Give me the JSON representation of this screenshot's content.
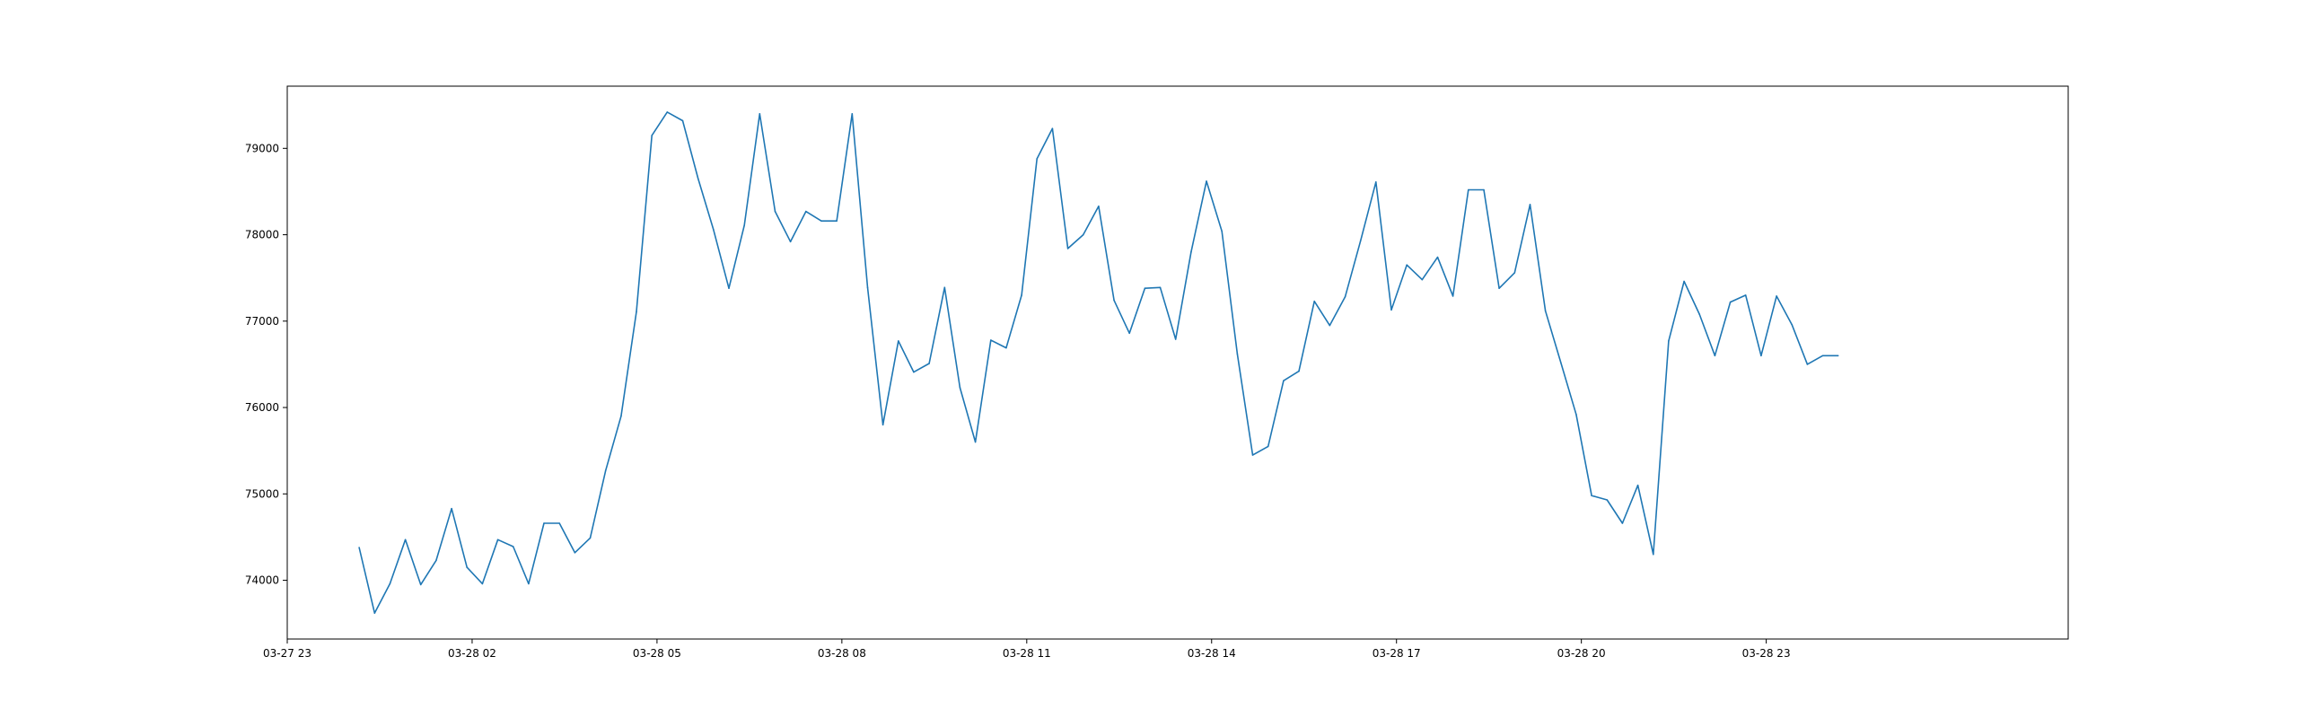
{
  "chart_data": {
    "type": "line",
    "title": "",
    "xlabel": "",
    "ylabel": "",
    "grid": false,
    "legend": "none",
    "x_axis": {
      "kind": "datetime",
      "range": [
        "03-27 23:00",
        "03-29 03:54"
      ],
      "ticks": [
        "03-27 23",
        "03-28 02",
        "03-28 05",
        "03-28 08",
        "03-28 11",
        "03-28 14",
        "03-28 17",
        "03-28 20",
        "03-28 23"
      ]
    },
    "y_axis": {
      "range": [
        73320,
        79720
      ],
      "ticks": [
        "74000",
        "75000",
        "76000",
        "77000",
        "78000",
        "79000"
      ]
    },
    "series": [
      {
        "color": "#1f77b4",
        "x": [
          "03-28 00:10",
          "03-28 00:25",
          "03-28 00:40",
          "03-28 00:55",
          "03-28 01:10",
          "03-28 01:25",
          "03-28 01:40",
          "03-28 01:55",
          "03-28 02:10",
          "03-28 02:25",
          "03-28 02:40",
          "03-28 02:55",
          "03-28 03:10",
          "03-28 03:25",
          "03-28 03:40",
          "03-28 03:55",
          "03-28 04:10",
          "03-28 04:25",
          "03-28 04:40",
          "03-28 04:55",
          "03-28 05:10",
          "03-28 05:25",
          "03-28 05:40",
          "03-28 05:55",
          "03-28 06:10",
          "03-28 06:25",
          "03-28 06:40",
          "03-28 06:55",
          "03-28 07:10",
          "03-28 07:25",
          "03-28 07:40",
          "03-28 07:55",
          "03-28 08:10",
          "03-28 08:25",
          "03-28 08:40",
          "03-28 08:55",
          "03-28 09:10",
          "03-28 09:25",
          "03-28 09:40",
          "03-28 09:55",
          "03-28 10:10",
          "03-28 10:25",
          "03-28 10:40",
          "03-28 10:55",
          "03-28 11:10",
          "03-28 11:25",
          "03-28 11:40",
          "03-28 11:55",
          "03-28 12:10",
          "03-28 12:25",
          "03-28 12:40",
          "03-28 12:55",
          "03-28 13:10",
          "03-28 13:25",
          "03-28 13:40",
          "03-28 13:55",
          "03-28 14:10",
          "03-28 14:25",
          "03-28 14:40",
          "03-28 14:55",
          "03-28 15:10",
          "03-28 15:25",
          "03-28 15:40",
          "03-28 15:55",
          "03-28 16:10",
          "03-28 16:25",
          "03-28 16:40",
          "03-28 16:55",
          "03-28 17:10",
          "03-28 17:25",
          "03-28 17:40",
          "03-28 17:55",
          "03-28 18:10",
          "03-28 18:25",
          "03-28 18:40",
          "03-28 18:55",
          "03-28 19:10",
          "03-28 19:25",
          "03-28 19:40",
          "03-28 19:55",
          "03-28 20:10",
          "03-28 20:25",
          "03-28 20:40",
          "03-28 20:55",
          "03-28 21:10",
          "03-28 21:25",
          "03-28 21:40",
          "03-28 21:55",
          "03-28 22:10",
          "03-28 22:25",
          "03-28 22:40",
          "03-28 22:55",
          "03-28 23:10",
          "03-28 23:25",
          "03-28 23:40",
          "03-28 23:55",
          "03-29 00:10"
        ],
        "y": [
          74380,
          73620,
          73960,
          74470,
          73950,
          74230,
          74830,
          74150,
          73960,
          74470,
          74390,
          73960,
          74660,
          74660,
          74320,
          74490,
          75270,
          75900,
          77110,
          79150,
          79420,
          79320,
          78650,
          78060,
          77380,
          78110,
          79400,
          78270,
          77920,
          78270,
          78160,
          78160,
          79400,
          77390,
          75800,
          76770,
          76410,
          76510,
          77390,
          76230,
          75600,
          76780,
          76690,
          77300,
          78880,
          79230,
          77840,
          78000,
          78330,
          77240,
          76860,
          77380,
          77390,
          76790,
          77800,
          78620,
          78040,
          76620,
          75450,
          75550,
          76310,
          76420,
          77230,
          76950,
          77280,
          77930,
          78610,
          77130,
          77650,
          77480,
          77740,
          77290,
          78520,
          78520,
          77380,
          77560,
          78350,
          77120,
          76520,
          75920,
          74980,
          74930,
          74660,
          75100,
          74300,
          76770,
          77460,
          77080,
          76600,
          77220,
          77300,
          76600,
          77290,
          76960,
          76500,
          76600,
          76600
        ]
      }
    ]
  }
}
